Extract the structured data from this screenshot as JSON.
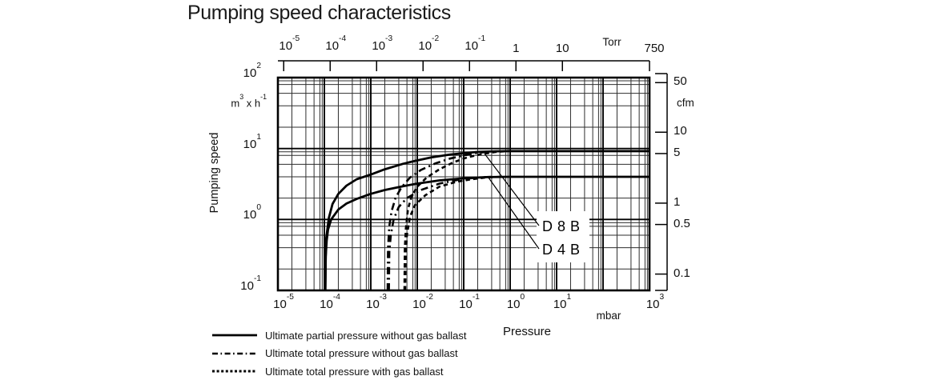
{
  "title": "Pumping speed characteristics",
  "chart_data": {
    "type": "line",
    "title": "Pumping speed characteristics",
    "x_axis": {
      "label": "Pressure",
      "unit": "mbar",
      "scale": "log",
      "range": [
        1e-05,
        1000
      ],
      "ticks": [
        {
          "v": 1e-05,
          "base": "10",
          "exp": "-5"
        },
        {
          "v": 0.0001,
          "base": "10",
          "exp": "-4"
        },
        {
          "v": 0.001,
          "base": "10",
          "exp": "-3"
        },
        {
          "v": 0.01,
          "base": "10",
          "exp": "-2"
        },
        {
          "v": 0.1,
          "base": "10",
          "exp": "-1"
        },
        {
          "v": 1,
          "base": "10",
          "exp": "0"
        },
        {
          "v": 10,
          "base": "10",
          "exp": "1"
        },
        {
          "v": 1000,
          "base": "10",
          "exp": "3"
        }
      ]
    },
    "x_axis_top": {
      "unit": "Torr",
      "scale": "log",
      "ticks": [
        {
          "torr": 1e-05,
          "base": "10",
          "exp": "-5"
        },
        {
          "torr": 0.0001,
          "base": "10",
          "exp": "-4"
        },
        {
          "torr": 0.001,
          "base": "10",
          "exp": "-3"
        },
        {
          "torr": 0.01,
          "base": "10",
          "exp": "-2"
        },
        {
          "torr": 0.1,
          "base": "10",
          "exp": "-1"
        },
        {
          "torr": 1,
          "text": "1"
        },
        {
          "torr": 10,
          "text": "10"
        },
        {
          "torr": 750,
          "text": "750"
        }
      ]
    },
    "y_axis": {
      "label": "Pumping speed",
      "unit_parts": [
        [
          "t",
          "m"
        ],
        [
          "sup",
          "3"
        ],
        [
          "t",
          " x h"
        ],
        [
          "sup",
          "-1"
        ]
      ],
      "scale": "log",
      "range": [
        0.1,
        100
      ],
      "ticks": [
        {
          "v": 100,
          "base": "10",
          "exp": "2"
        },
        {
          "v": 10,
          "base": "10",
          "exp": "1"
        },
        {
          "v": 1,
          "base": "10",
          "exp": "0"
        },
        {
          "v": 0.1,
          "base": "10",
          "exp": "-1"
        }
      ]
    },
    "y_axis_right": {
      "unit": "cfm",
      "ticks": [
        {
          "cfm": 50,
          "text": "50"
        },
        {
          "cfm": 10,
          "text": "10"
        },
        {
          "cfm": 5,
          "text": "5"
        },
        {
          "cfm": 1,
          "text": "1"
        },
        {
          "cfm": 0.5,
          "text": "0.5"
        },
        {
          "cfm": 0.1,
          "text": "0.1"
        }
      ]
    },
    "grid": {
      "major_decades": true,
      "minor_multipliers": [
        2,
        4,
        6,
        8,
        9
      ]
    },
    "series": [
      {
        "id": "d8b-partial-no-ballast",
        "pump": "D 8 B",
        "style": "solid",
        "points": [
          [
            0.000105,
            0.1
          ],
          [
            0.000107,
            0.3
          ],
          [
            0.00011,
            0.55
          ],
          [
            0.000125,
            1.05
          ],
          [
            0.00015,
            1.65
          ],
          [
            0.0002,
            2.3
          ],
          [
            0.0003,
            3.0
          ],
          [
            0.0005,
            3.7
          ],
          [
            0.001,
            4.3
          ],
          [
            0.002,
            5.1
          ],
          [
            0.005,
            6.1
          ],
          [
            0.01,
            6.8
          ],
          [
            0.02,
            7.5
          ],
          [
            0.05,
            8.2
          ],
          [
            0.1,
            8.6
          ],
          [
            0.2,
            8.95
          ],
          [
            0.5,
            9.15
          ],
          [
            1,
            9.2
          ],
          [
            1000,
            9.2
          ]
        ]
      },
      {
        "id": "d4b-partial-no-ballast",
        "pump": "D 4 B",
        "style": "solid",
        "points": [
          [
            0.000105,
            0.1
          ],
          [
            0.000107,
            0.3
          ],
          [
            0.000112,
            0.5
          ],
          [
            0.00012,
            0.72
          ],
          [
            0.00014,
            1.0
          ],
          [
            0.0002,
            1.38
          ],
          [
            0.0003,
            1.68
          ],
          [
            0.0005,
            1.95
          ],
          [
            0.001,
            2.3
          ],
          [
            0.002,
            2.6
          ],
          [
            0.005,
            2.95
          ],
          [
            0.01,
            3.2
          ],
          [
            0.03,
            3.55
          ],
          [
            0.1,
            3.8
          ],
          [
            0.3,
            3.95
          ],
          [
            1,
            4.0
          ],
          [
            1000,
            4.0
          ]
        ]
      },
      {
        "id": "d8b-total-no-ballast",
        "pump": "D 8 B",
        "style": "dashdot",
        "points": [
          [
            0.0023,
            0.1
          ],
          [
            0.00235,
            0.4
          ],
          [
            0.0025,
            0.8
          ],
          [
            0.0028,
            1.3
          ],
          [
            0.0034,
            2.0
          ],
          [
            0.0045,
            2.8
          ],
          [
            0.007,
            3.9
          ],
          [
            0.012,
            5.0
          ],
          [
            0.025,
            6.2
          ],
          [
            0.05,
            7.2
          ],
          [
            0.1,
            8.0
          ],
          [
            0.2,
            8.7
          ],
          [
            0.4,
            9.1
          ]
        ]
      },
      {
        "id": "d4b-total-no-ballast",
        "pump": "D 4 B",
        "style": "dashdot",
        "points": [
          [
            0.00245,
            0.1
          ],
          [
            0.0025,
            0.35
          ],
          [
            0.0027,
            0.6
          ],
          [
            0.0031,
            1.0
          ],
          [
            0.004,
            1.5
          ],
          [
            0.006,
            2.0
          ],
          [
            0.012,
            2.6
          ],
          [
            0.03,
            3.2
          ],
          [
            0.08,
            3.65
          ],
          [
            0.2,
            3.9
          ],
          [
            0.4,
            4.0
          ]
        ]
      },
      {
        "id": "d8b-total-with-ballast",
        "pump": "D 8 B",
        "style": "dashed",
        "points": [
          [
            0.0053,
            0.1
          ],
          [
            0.0054,
            0.4
          ],
          [
            0.0057,
            0.75
          ],
          [
            0.0063,
            1.4
          ],
          [
            0.0075,
            2.1
          ],
          [
            0.01,
            2.9
          ],
          [
            0.016,
            3.9
          ],
          [
            0.03,
            5.1
          ],
          [
            0.06,
            6.4
          ],
          [
            0.12,
            7.5
          ],
          [
            0.25,
            8.4
          ],
          [
            0.5,
            8.95
          ],
          [
            0.8,
            9.15
          ]
        ]
      },
      {
        "id": "d4b-total-with-ballast",
        "pump": "D 4 B",
        "style": "dashed",
        "points": [
          [
            0.0055,
            0.1
          ],
          [
            0.0057,
            0.35
          ],
          [
            0.006,
            0.6
          ],
          [
            0.007,
            1.1
          ],
          [
            0.009,
            1.6
          ],
          [
            0.015,
            2.2
          ],
          [
            0.03,
            2.9
          ],
          [
            0.07,
            3.4
          ],
          [
            0.15,
            3.7
          ],
          [
            0.3,
            3.9
          ],
          [
            0.6,
            4.0
          ]
        ]
      }
    ],
    "annotations": [
      {
        "id": "d8b-label",
        "text": "D 8 B"
      },
      {
        "id": "d4b-label",
        "text": "D 4 B"
      }
    ],
    "legend": [
      {
        "style": "solid",
        "label": "Ultimate partial pressure without gas ballast"
      },
      {
        "style": "dashdot",
        "label": "Ultimate total pressure without gas ballast"
      },
      {
        "style": "dashed",
        "label": "Ultimate total pressure with gas ballast"
      }
    ]
  }
}
